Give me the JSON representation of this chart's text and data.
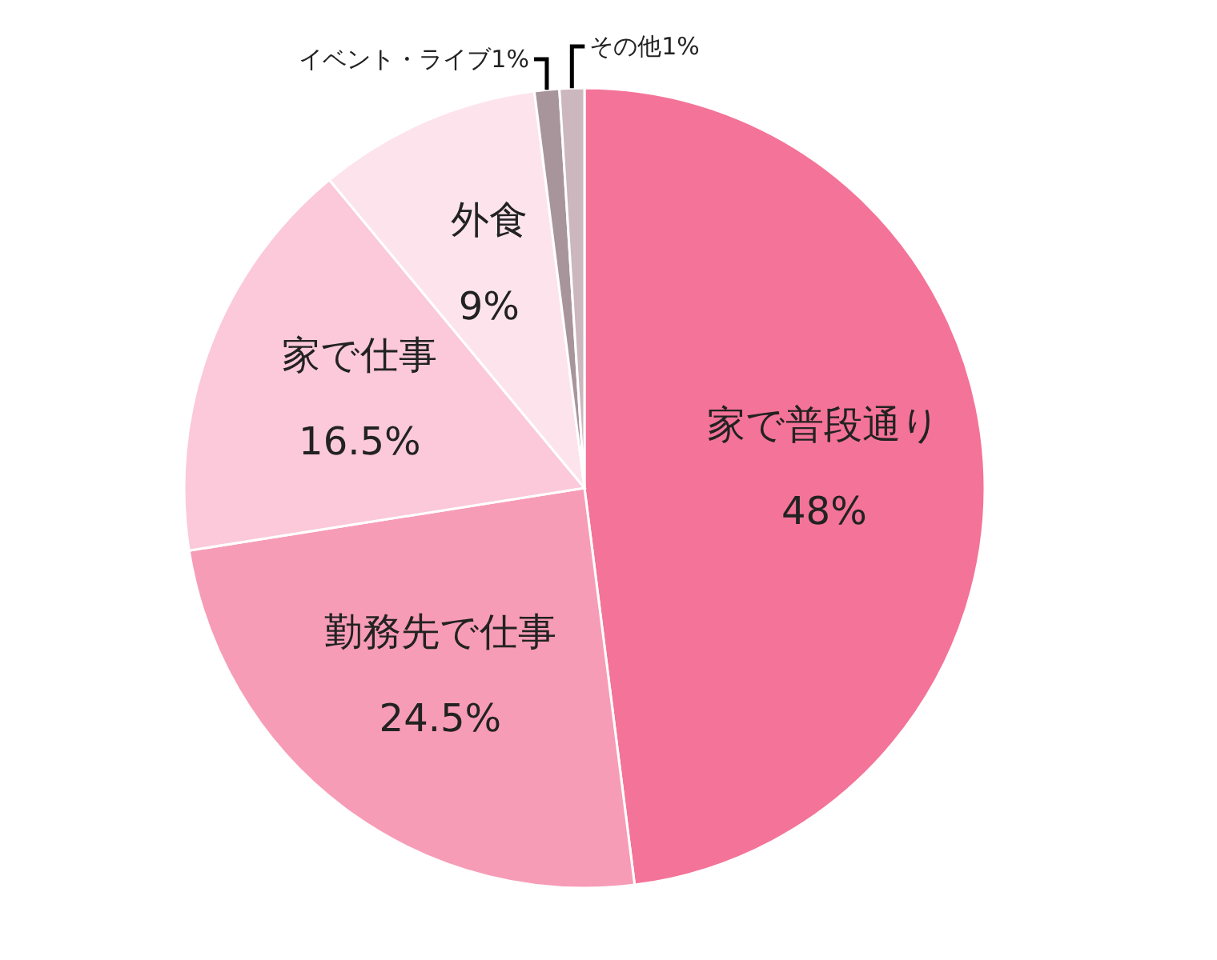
{
  "chart_data": {
    "type": "pie",
    "categories": [
      "家で普段通り",
      "勤務先で仕事",
      "家で仕事",
      "外食",
      "イベント・ライブ",
      "その他"
    ],
    "values": [
      48,
      24.5,
      16.5,
      9,
      1,
      1
    ],
    "value_labels": [
      "48%",
      "24.5%",
      "16.5%",
      "9%",
      "1%",
      "1%"
    ],
    "colors": [
      "#f47398",
      "#f79cb6",
      "#fbc9d9",
      "#fde4ec",
      "#a8959b",
      "#cbb7bd"
    ],
    "legend": false
  }
}
